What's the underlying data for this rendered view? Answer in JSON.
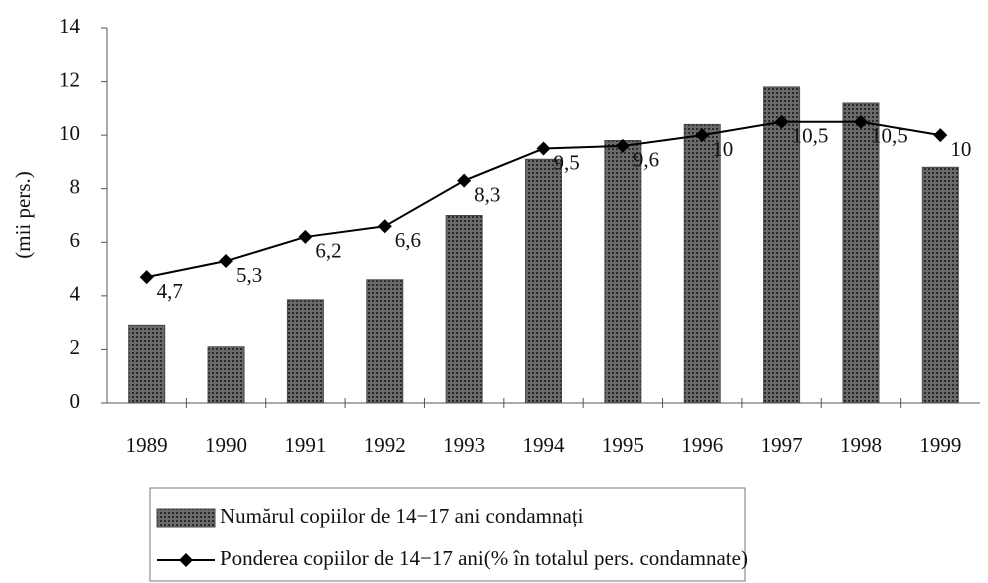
{
  "chart_data": {
    "type": "bar",
    "ylabel": "(mii pers.)",
    "categories": [
      "1989",
      "1990",
      "1991",
      "1992",
      "1993",
      "1994",
      "1995",
      "1996",
      "1997",
      "1998",
      "1999"
    ],
    "series": [
      {
        "name": "Numărul copiilor de 14−17 ani condamnați",
        "type": "bar",
        "color": "#4a4a4a",
        "values": [
          2.9,
          2.1,
          3.85,
          4.6,
          7.0,
          9.1,
          9.8,
          10.4,
          11.8,
          11.2,
          8.8
        ]
      },
      {
        "name": "Ponderea copiilor de 14−17 ani(% în totalul pers. condamnate)",
        "type": "line",
        "color": "#000000",
        "values": [
          4.7,
          5.3,
          6.2,
          6.6,
          8.3,
          9.5,
          9.6,
          10,
          10.5,
          10.5,
          10
        ],
        "value_labels": [
          "4,7",
          "5,3",
          "6,2",
          "6,6",
          "8,3",
          "9,5",
          "9,6",
          "10",
          "10,5",
          "10,5",
          "10"
        ]
      }
    ],
    "ylim": [
      0,
      14
    ],
    "yticks": [
      0,
      2,
      4,
      6,
      8,
      10,
      12,
      14
    ]
  }
}
